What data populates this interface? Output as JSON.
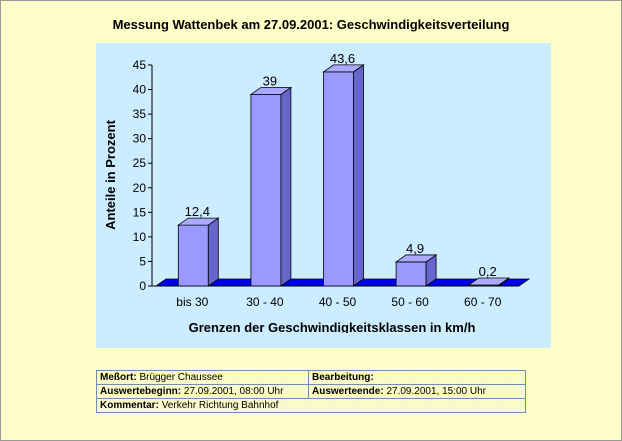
{
  "chart_data": {
    "type": "bar",
    "title": "Messung Wattenbek am 27.09.2001: Geschwindigkeitsverteilung",
    "xlabel": "Grenzen der Geschwindigkeitsklassen in km/h",
    "ylabel": "Anteile in Prozent",
    "categories": [
      "bis 30",
      "30 - 40",
      "40 - 50",
      "50 - 60",
      "60 - 70"
    ],
    "values": [
      12.4,
      39,
      43.6,
      4.9,
      0.2
    ],
    "data_labels": [
      "12,4",
      "39",
      "43,6",
      "4,9",
      "0,2"
    ],
    "ylim": [
      0,
      45
    ],
    "yticks": [
      0,
      5,
      10,
      15,
      20,
      25,
      30,
      35,
      40,
      45
    ],
    "grid": false,
    "legend": "none",
    "colors": {
      "bar_face": "#9999ff",
      "bar_side": "#6666cc",
      "bar_top": "#aaaaff",
      "floor": "#0000ee",
      "plot_background": "#ccecff",
      "page_background": "#fefec8"
    }
  },
  "info": {
    "messort_label": "Meßort:",
    "messort_value": "Brügger Chaussee",
    "bearbeitung_label": "Bearbeitung:",
    "bearbeitung_value": "",
    "auswertebeginn_label": "Auswertebeginn:",
    "auswertebeginn_value": "27.09.2001, 08:00 Uhr",
    "auswerteende_label": "Auswerteende:",
    "auswerteende_value": "27.09.2001, 15:00 Uhr",
    "kommentar_label": "Kommentar:",
    "kommentar_value": "Verkehr Richtung Bahnhof"
  }
}
